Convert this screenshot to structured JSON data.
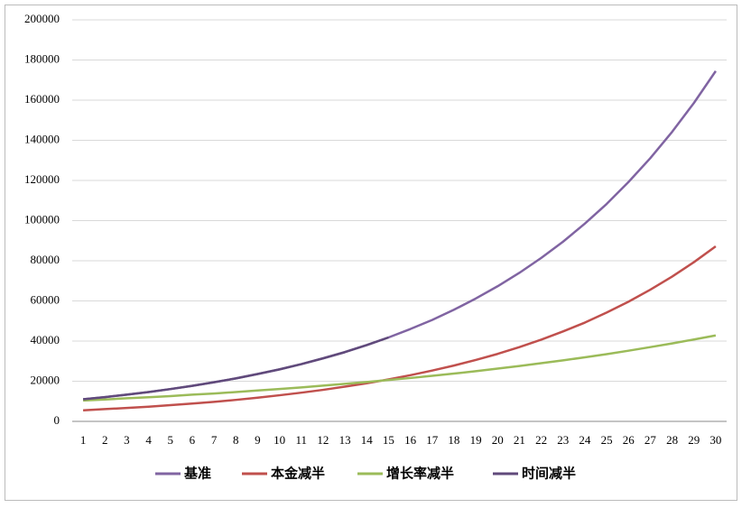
{
  "chart_data": {
    "type": "line",
    "categories": [
      "1",
      "2",
      "3",
      "4",
      "5",
      "6",
      "7",
      "8",
      "9",
      "10",
      "11",
      "12",
      "13",
      "14",
      "15",
      "16",
      "17",
      "18",
      "19",
      "20",
      "21",
      "22",
      "23",
      "24",
      "25",
      "26",
      "27",
      "28",
      "29",
      "30"
    ],
    "series": [
      {
        "name": "基准",
        "color": "#8064a2",
        "values": [
          11000,
          12100,
          13300,
          14600,
          16100,
          17700,
          19500,
          21400,
          23600,
          25900,
          28500,
          31400,
          34500,
          38000,
          41800,
          46000,
          50500,
          55600,
          61200,
          67300,
          74000,
          81400,
          89500,
          98500,
          108300,
          119200,
          131100,
          144200,
          158600,
          174500
        ]
      },
      {
        "name": "本金减半",
        "color": "#c0504d",
        "values": [
          5500,
          6100,
          6700,
          7300,
          8100,
          8900,
          9700,
          10700,
          11800,
          13000,
          14300,
          15700,
          17300,
          19000,
          20900,
          23000,
          25300,
          27800,
          30600,
          33600,
          37000,
          40700,
          44800,
          49200,
          54200,
          59600,
          65600,
          72100,
          79300,
          87200
        ]
      },
      {
        "name": "增长率减半",
        "color": "#9bbb59",
        "values": [
          10400,
          10900,
          11500,
          12000,
          12600,
          13300,
          13900,
          14600,
          15400,
          16100,
          16900,
          17800,
          18700,
          19600,
          20600,
          21600,
          22700,
          23800,
          25000,
          26300,
          27600,
          29000,
          30400,
          31900,
          33500,
          35200,
          37000,
          38800,
          40800,
          42800
        ]
      },
      {
        "name": "时间减半",
        "color": "#604a7b",
        "values": [
          11000,
          12100,
          13300,
          14600,
          16100,
          17700,
          19500,
          21400,
          23600,
          25900,
          28500,
          31400,
          34500,
          38000,
          41800,
          null,
          null,
          null,
          null,
          null,
          null,
          null,
          null,
          null,
          null,
          null,
          null,
          null,
          null,
          null
        ]
      }
    ],
    "ylim": [
      0,
      200000
    ],
    "yticks": [
      0,
      20000,
      40000,
      60000,
      80000,
      100000,
      120000,
      140000,
      160000,
      180000,
      200000
    ],
    "grid": true,
    "legend": "bottom"
  }
}
